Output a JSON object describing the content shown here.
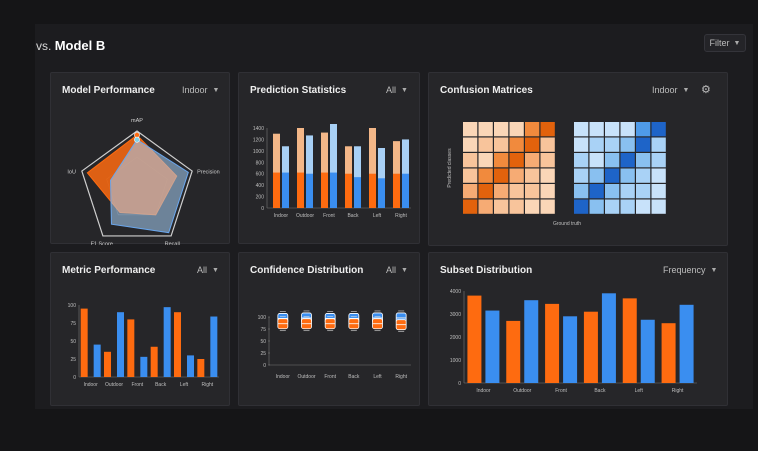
{
  "header": {
    "prefix": "vs.",
    "title": "Model B",
    "filter_label": "Filter"
  },
  "colors": {
    "orange": "#fe6b10",
    "orange_light": "#f3b788",
    "blue": "#3a8ef0",
    "blue_light": "#a8d0f5",
    "panel": "#262629"
  },
  "panels": {
    "model_performance": {
      "title": "Model Performance",
      "select": "Indoor"
    },
    "prediction_statistics": {
      "title": "Prediction Statistics",
      "select": "All"
    },
    "confusion_matrices": {
      "title": "Confusion Matrices",
      "select": "Indoor",
      "xlabel": "Ground truth",
      "ylabel": "Predicted classes"
    },
    "metric_performance": {
      "title": "Metric Performance",
      "select": "All"
    },
    "confidence_distribution": {
      "title": "Confidence Distribution",
      "select": "All"
    },
    "subset_distribution": {
      "title": "Subset Distribution",
      "select": "Frequency"
    }
  },
  "chart_data": [
    {
      "id": "model_performance",
      "type": "radar",
      "axes": [
        "mAP",
        "Precision",
        "Recall",
        "F1 Score",
        "IoU"
      ],
      "series": [
        {
          "values": [
            0.93,
            0.72,
            0.55,
            0.5,
            0.9
          ]
        },
        {
          "values": [
            0.85,
            0.93,
            0.93,
            0.75,
            0.48
          ]
        }
      ]
    },
    {
      "id": "prediction_statistics",
      "type": "bar",
      "categories": [
        "Indoor",
        "Outdoor",
        "Front",
        "Back",
        "Left",
        "Right"
      ],
      "y_ticks": [
        "1400",
        "1200",
        "1000",
        "800",
        "600",
        "400",
        "200",
        "0"
      ],
      "ylim": [
        0,
        1400
      ],
      "series": [
        {
          "totals": [
            1300,
            1400,
            1320,
            1080,
            1400,
            1170
          ],
          "fills": [
            620,
            620,
            620,
            600,
            600,
            600
          ]
        },
        {
          "totals": [
            1080,
            1270,
            1470,
            1080,
            1050,
            1200
          ],
          "fills": [
            620,
            600,
            620,
            540,
            520,
            600
          ]
        }
      ]
    },
    {
      "id": "confusion_matrices",
      "type": "heatmap",
      "matrices": [
        {
          "values": [
            [
              0.2,
              0.2,
              0.2,
              0.2,
              0.6,
              0.9
            ],
            [
              0.2,
              0.3,
              0.3,
              0.6,
              0.9,
              0.3
            ],
            [
              0.3,
              0.2,
              0.6,
              0.9,
              0.5,
              0.3
            ],
            [
              0.3,
              0.6,
              0.9,
              0.5,
              0.3,
              0.2
            ],
            [
              0.5,
              0.9,
              0.5,
              0.3,
              0.3,
              0.2
            ],
            [
              0.9,
              0.5,
              0.3,
              0.3,
              0.2,
              0.2
            ]
          ]
        },
        {
          "values": [
            [
              0.2,
              0.2,
              0.2,
              0.2,
              0.6,
              0.9
            ],
            [
              0.2,
              0.3,
              0.3,
              0.5,
              0.9,
              0.3
            ],
            [
              0.3,
              0.2,
              0.5,
              0.9,
              0.5,
              0.3
            ],
            [
              0.3,
              0.5,
              0.9,
              0.5,
              0.3,
              0.2
            ],
            [
              0.4,
              0.9,
              0.5,
              0.3,
              0.3,
              0.2
            ],
            [
              0.9,
              0.4,
              0.3,
              0.3,
              0.2,
              0.2
            ]
          ]
        }
      ]
    },
    {
      "id": "metric_performance",
      "type": "bar",
      "categories": [
        "Indoor",
        "Outdoor",
        "Front",
        "Back",
        "Left",
        "Right"
      ],
      "y_ticks": [
        "100",
        "75",
        "50",
        "25",
        "0"
      ],
      "ylim": [
        0,
        100
      ],
      "series": [
        {
          "values": [
            95,
            35,
            80,
            42,
            90,
            25
          ]
        },
        {
          "values": [
            45,
            90,
            28,
            97,
            30,
            84
          ]
        }
      ]
    },
    {
      "id": "confidence_distribution",
      "type": "boxplot",
      "categories": [
        "Indoor",
        "Outdoor",
        "Front",
        "Back",
        "Left",
        "Right"
      ],
      "y_ticks": [
        "100",
        "75",
        "50",
        "25",
        "0"
      ],
      "ylim": [
        0,
        100
      ],
      "series": [
        {
          "values": [
            97,
            98,
            97,
            97,
            98,
            98
          ]
        },
        {
          "values": [
            86,
            86,
            86,
            86,
            86,
            84
          ]
        }
      ]
    },
    {
      "id": "subset_distribution",
      "type": "bar",
      "categories": [
        "Indoor",
        "Outdoor",
        "Front",
        "Back",
        "Left",
        "Right"
      ],
      "y_ticks": [
        "4000",
        "3000",
        "2000",
        "1000",
        "0"
      ],
      "ylim": [
        0,
        4000
      ],
      "series": [
        {
          "values": [
            3800,
            2700,
            3440,
            3100,
            3680,
            2600
          ]
        },
        {
          "values": [
            3150,
            3600,
            2900,
            3900,
            2750,
            3400
          ]
        }
      ]
    }
  ]
}
